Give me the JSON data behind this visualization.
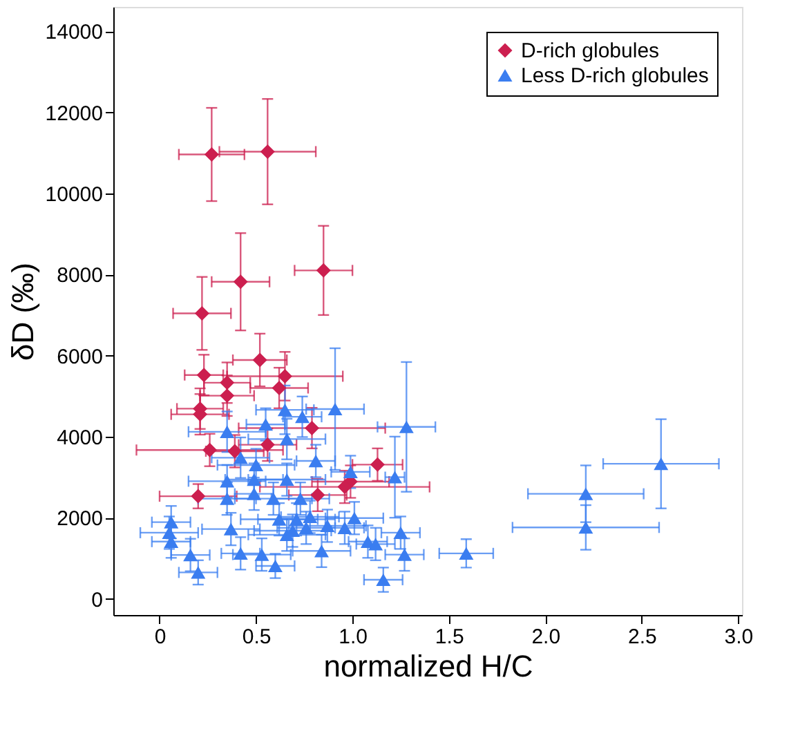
{
  "chart_data": {
    "type": "scatter",
    "xlabel": "normalized H/C",
    "ylabel": "δD (‰)",
    "xlim": [
      -0.24,
      3.02
    ],
    "xticks": [
      0,
      0.5,
      {
        "value": 1,
        "label": "1.0"
      },
      1.5,
      {
        "value": 2,
        "label": "2.0"
      },
      2.5,
      {
        "value": 3,
        "label": "3.0"
      }
    ],
    "ylim": [
      -400,
      14600
    ],
    "yticks": [
      0,
      2000,
      4000,
      6000,
      8000,
      10000,
      12000,
      14000
    ],
    "grid": false,
    "legend": "top right",
    "series": [
      {
        "name": "D-rich globules",
        "color": "#cc1f4f",
        "marker": "diamond",
        "x": [
          0.27,
          0.56,
          0.42,
          0.85,
          0.22,
          0.23,
          0.52,
          0.35,
          0.65,
          0.62,
          0.35,
          0.21,
          0.21,
          0.79,
          0.26,
          0.56,
          0.39,
          1.13,
          0.99,
          0.96,
          0.82,
          0.2
        ],
        "values": [
          10960,
          11030,
          7820,
          8100,
          7040,
          5520,
          5890,
          5330,
          5490,
          5200,
          5010,
          4690,
          4550,
          4210,
          3670,
          3800,
          3640,
          3310,
          2890,
          2760,
          2560,
          2530
        ],
        "xerrors": [
          0.17,
          0.25,
          0.15,
          0.15,
          0.15,
          0.1,
          0.14,
          0.12,
          0.3,
          0.15,
          0.14,
          0.12,
          0.15,
          0.38,
          0.38,
          0.15,
          0.15,
          0.13,
          0.2,
          0.44,
          0.15,
          0.2
        ],
        "errors": [
          1150,
          1300,
          1200,
          1100,
          900,
          500,
          650,
          500,
          600,
          500,
          500,
          500,
          500,
          500,
          400,
          400,
          400,
          400,
          400,
          400,
          400,
          300
        ]
      },
      {
        "name": "Less D-rich globules",
        "color": "#3a7df0",
        "marker": "triangle",
        "x": [
          0.35,
          0.55,
          0.65,
          0.74,
          0.91,
          0.66,
          0.42,
          0.81,
          0.5,
          0.99,
          0.35,
          0.49,
          0.66,
          0.35,
          0.49,
          0.59,
          0.73,
          0.06,
          0.05,
          0.06,
          0.16,
          0.2,
          0.37,
          0.42,
          0.53,
          0.6,
          0.66,
          0.76,
          0.87,
          0.96,
          0.84,
          0.62,
          0.71,
          0.78,
          0.69,
          1.01,
          1.08,
          1.12,
          1.16,
          1.22,
          1.28,
          1.25,
          1.27,
          1.59,
          2.21,
          2.21,
          2.6
        ],
        "values": [
          4120,
          4300,
          4660,
          4490,
          4680,
          3940,
          3480,
          3400,
          3300,
          3130,
          2900,
          2940,
          2940,
          2470,
          2590,
          2470,
          2470,
          1890,
          1630,
          1410,
          1080,
          650,
          1720,
          1120,
          1090,
          810,
          1580,
          1750,
          1800,
          1750,
          1180,
          1960,
          1960,
          2020,
          1680,
          1990,
          1410,
          1350,
          470,
          3000,
          4240,
          1630,
          1090,
          1120,
          2590,
          1760,
          3330
        ],
        "xerrors": [
          0.2,
          0.1,
          0.15,
          0.1,
          0.15,
          0.2,
          0.15,
          0.1,
          0.2,
          0.1,
          0.2,
          0.15,
          0.2,
          0.15,
          0.1,
          0.2,
          0.15,
          0.1,
          0.15,
          0.1,
          0.1,
          0.1,
          0.15,
          0.1,
          0.15,
          0.1,
          0.2,
          0.15,
          0.2,
          0.1,
          0.15,
          0.2,
          0.2,
          0.15,
          0.2,
          0.15,
          0.1,
          0.1,
          0.1,
          0.05,
          0.15,
          0.1,
          0.1,
          0.14,
          0.3,
          0.38,
          0.3
        ],
        "errors": [
          500,
          400,
          600,
          500,
          1500,
          500,
          500,
          400,
          400,
          400,
          400,
          400,
          400,
          400,
          400,
          400,
          400,
          400,
          400,
          400,
          400,
          300,
          400,
          400,
          400,
          300,
          400,
          400,
          400,
          400,
          400,
          400,
          400,
          400,
          400,
          400,
          400,
          400,
          300,
          1000,
          1600,
          400,
          400,
          350,
          700,
          550,
          1100
        ]
      }
    ]
  }
}
